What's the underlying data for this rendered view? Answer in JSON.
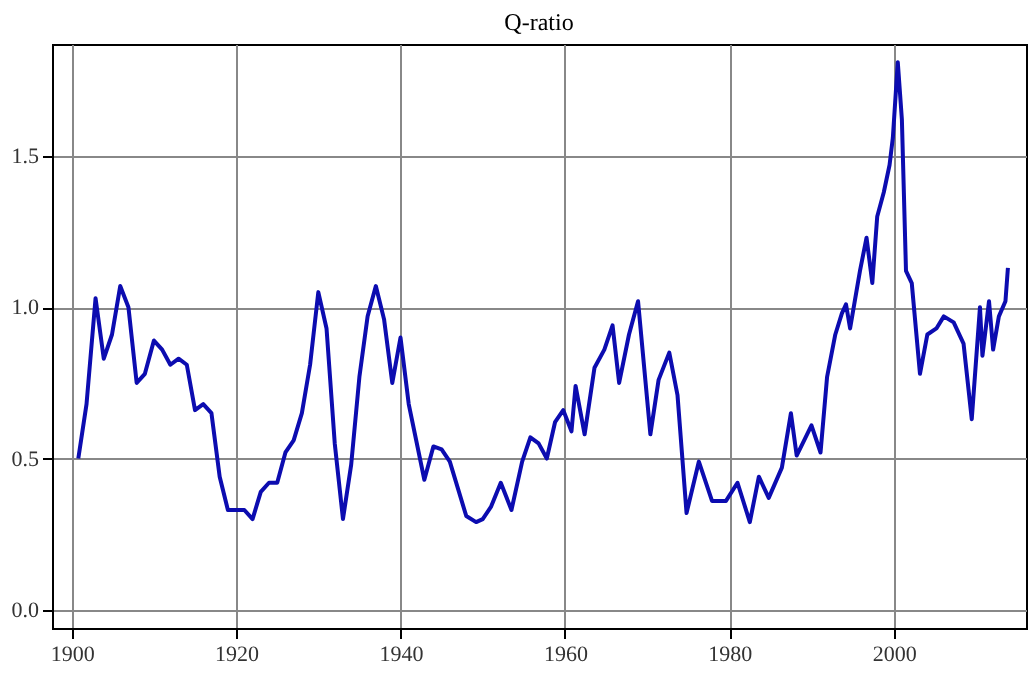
{
  "chart_data": {
    "type": "line",
    "title": "Q-ratio",
    "x": [
      1900.8,
      1901.8,
      1902.9,
      1903.9,
      1904.9,
      1905.9,
      1906.9,
      1907.9,
      1908.9,
      1910,
      1911,
      1912,
      1913,
      1914,
      1915,
      1916,
      1917,
      1918,
      1919,
      1920,
      1921,
      1922,
      1923,
      1924,
      1925,
      1926,
      1927,
      1928,
      1929,
      1930,
      1931,
      1932,
      1933,
      1934,
      1935,
      1936,
      1937,
      1938,
      1939,
      1940,
      1941,
      1942.9,
      1944,
      1945,
      1946,
      1948,
      1949.2,
      1950,
      1951,
      1952.2,
      1953.5,
      1954.8,
      1955.8,
      1956.8,
      1957.8,
      1958.8,
      1959.8,
      1960.8,
      1961.3,
      1962.4,
      1963.6,
      1964.8,
      1965.8,
      1966.6,
      1967.8,
      1968.9,
      1970.4,
      1971.4,
      1972.7,
      1973.7,
      1974.8,
      1976.3,
      1977.9,
      1979.6,
      1981,
      1982.5,
      1983.6,
      1984.8,
      1986.4,
      1987.5,
      1988.2,
      1990,
      1991.1,
      1991.9,
      1992.9,
      1993.7,
      1994.2,
      1994.7,
      1995.9,
      1996.7,
      1997.4,
      1998,
      1998.8,
      1999.5,
      1999.9,
      2000.5,
      2001,
      2001.5,
      2002.2,
      2002.5,
      2003.2,
      2004.1,
      2005.2,
      2006.1,
      2007.3,
      2008.5,
      2009.5,
      2010.5,
      2010.8,
      2011.6,
      2012.1,
      2012.8,
      2013.6,
      2013.9
    ],
    "series": [
      {
        "color": "#0c0cb0",
        "values": [
          0.5,
          0.68,
          1.03,
          0.83,
          0.91,
          1.07,
          1.0,
          0.75,
          0.78,
          0.89,
          0.86,
          0.81,
          0.83,
          0.81,
          0.66,
          0.68,
          0.65,
          0.44,
          0.33,
          0.33,
          0.33,
          0.3,
          0.39,
          0.42,
          0.42,
          0.52,
          0.56,
          0.65,
          0.81,
          1.05,
          0.93,
          0.55,
          0.3,
          0.48,
          0.77,
          0.97,
          1.07,
          0.96,
          0.75,
          0.9,
          0.68,
          0.43,
          0.54,
          0.53,
          0.49,
          0.31,
          0.29,
          0.3,
          0.34,
          0.42,
          0.33,
          0.49,
          0.57,
          0.55,
          0.5,
          0.62,
          0.66,
          0.59,
          0.74,
          0.58,
          0.8,
          0.86,
          0.94,
          0.75,
          0.91,
          1.02,
          0.58,
          0.76,
          0.85,
          0.71,
          0.32,
          0.49,
          0.36,
          0.36,
          0.42,
          0.29,
          0.44,
          0.37,
          0.47,
          0.65,
          0.51,
          0.61,
          0.52,
          0.77,
          0.91,
          0.98,
          1.01,
          0.93,
          1.12,
          1.23,
          1.08,
          1.3,
          1.38,
          1.47,
          1.56,
          1.81,
          1.62,
          1.12,
          1.08,
          0.99,
          0.78,
          0.91,
          0.93,
          0.97,
          0.95,
          0.88,
          0.63,
          1.0,
          0.84,
          1.02,
          0.86,
          0.97,
          1.02,
          1.13
        ]
      }
    ],
    "xlim": [
      1897.6,
      2016.1
    ],
    "ylim": [
      -0.06,
      1.87
    ],
    "xticks": [
      1900,
      1920,
      1940,
      1960,
      1980,
      2000
    ],
    "yticks": [
      {
        "value": 0,
        "label": "0.0"
      },
      {
        "value": 0.5,
        "label": "0.5"
      },
      {
        "value": 1,
        "label": "1.0"
      },
      {
        "value": 1.5,
        "label": "1.5"
      }
    ],
    "grid": true,
    "marker": "none",
    "line_style": "solid"
  }
}
